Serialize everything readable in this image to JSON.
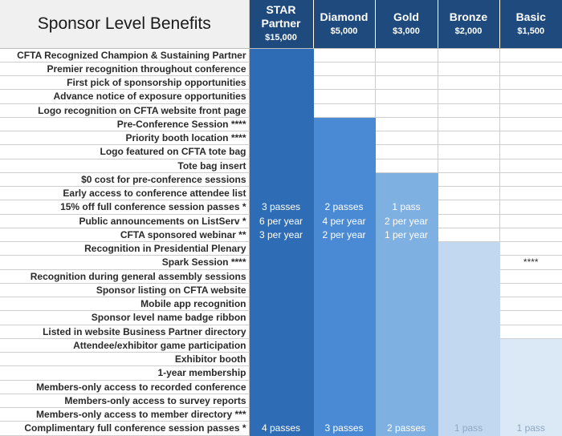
{
  "title": "Sponsor Level Benefits",
  "levels": [
    {
      "name": "STAR Partner",
      "price": "$15,000",
      "color": "#2e6db5"
    },
    {
      "name": "Diamond",
      "price": "$5,000",
      "color": "#4a8ad4"
    },
    {
      "name": "Gold",
      "price": "$3,000",
      "color": "#7eb0e2"
    },
    {
      "name": "Bronze",
      "price": "$2,000",
      "color": "#c2d8f0"
    },
    {
      "name": "Basic",
      "price": "$1,500",
      "color": "#dbe8f5"
    }
  ],
  "header_color": "#1e4a7d",
  "benefits": [
    {
      "label": "CFTA Recognized Champion & Sustaining Partner",
      "included_from": 0,
      "values": [
        "",
        "",
        "",
        "",
        ""
      ]
    },
    {
      "label": "Premier recognition throughout conference",
      "included_from": 0,
      "values": [
        "",
        "",
        "",
        "",
        ""
      ]
    },
    {
      "label": "First pick of sponsorship opportunities",
      "included_from": 0,
      "values": [
        "",
        "",
        "",
        "",
        ""
      ]
    },
    {
      "label": "Advance notice of exposure opportunities",
      "included_from": 0,
      "values": [
        "",
        "",
        "",
        "",
        ""
      ]
    },
    {
      "label": "Logo recognition on CFTA website front page",
      "included_from": 0,
      "values": [
        "",
        "",
        "",
        "",
        ""
      ]
    },
    {
      "label": "Pre-Conference Session ****",
      "included_from": 1,
      "values": [
        "",
        "",
        "",
        "",
        ""
      ]
    },
    {
      "label": "Priority booth location ****",
      "included_from": 1,
      "values": [
        "",
        "",
        "",
        "",
        ""
      ]
    },
    {
      "label": "Logo featured on CFTA tote bag",
      "included_from": 1,
      "values": [
        "",
        "",
        "",
        "",
        ""
      ]
    },
    {
      "label": "Tote bag insert",
      "included_from": 1,
      "values": [
        "",
        "",
        "",
        "",
        ""
      ]
    },
    {
      "label": "$0 cost for pre-conference sessions",
      "included_from": 2,
      "values": [
        "",
        "",
        "",
        "",
        ""
      ]
    },
    {
      "label": "Early access to conference attendee list",
      "included_from": 2,
      "values": [
        "",
        "",
        "",
        "",
        ""
      ]
    },
    {
      "label": "15% off full conference session passes *",
      "included_from": 2,
      "values": [
        "3 passes",
        "2 passes",
        "1 pass",
        "",
        ""
      ]
    },
    {
      "label": "Public announcements on ListServ *",
      "included_from": 2,
      "values": [
        "6 per year",
        "4 per year",
        "2 per year",
        "",
        ""
      ]
    },
    {
      "label": "CFTA sponsored webinar **",
      "included_from": 2,
      "values": [
        "3 per year",
        "2 per year",
        "1 per year",
        "",
        ""
      ]
    },
    {
      "label": "Recognition in Presidential Plenary",
      "included_from": 3,
      "values": [
        "",
        "",
        "",
        "",
        ""
      ]
    },
    {
      "label": "Spark Session ****",
      "included_from": 3,
      "values": [
        "",
        "",
        "",
        "",
        "****"
      ]
    },
    {
      "label": "Recognition during general assembly sessions",
      "included_from": 3,
      "values": [
        "",
        "",
        "",
        "",
        ""
      ]
    },
    {
      "label": "Sponsor listing on CFTA website",
      "included_from": 3,
      "values": [
        "",
        "",
        "",
        "",
        ""
      ]
    },
    {
      "label": "Mobile app recognition",
      "included_from": 3,
      "values": [
        "",
        "",
        "",
        "",
        ""
      ]
    },
    {
      "label": "Sponsor level name badge ribbon",
      "included_from": 3,
      "values": [
        "",
        "",
        "",
        "",
        ""
      ]
    },
    {
      "label": "Listed in website Business Partner directory",
      "included_from": 3,
      "values": [
        "",
        "",
        "",
        "",
        ""
      ]
    },
    {
      "label": "Attendee/exhibitor game participation",
      "included_from": 4,
      "values": [
        "",
        "",
        "",
        "",
        ""
      ]
    },
    {
      "label": "Exhibitor booth",
      "included_from": 4,
      "values": [
        "",
        "",
        "",
        "",
        ""
      ]
    },
    {
      "label": "1-year membership",
      "included_from": 4,
      "values": [
        "",
        "",
        "",
        "",
        ""
      ]
    },
    {
      "label": "Members-only access to recorded conference",
      "included_from": 4,
      "values": [
        "",
        "",
        "",
        "",
        ""
      ]
    },
    {
      "label": "Members-only access to survey reports",
      "included_from": 4,
      "values": [
        "",
        "",
        "",
        "",
        ""
      ]
    },
    {
      "label": "Members-only access to member directory ***",
      "included_from": 4,
      "values": [
        "",
        "",
        "",
        "",
        ""
      ]
    },
    {
      "label": "Complimentary full conference session passes *",
      "included_from": 4,
      "values": [
        "4 passes",
        "3 passes",
        "2 passes",
        "1 pass",
        "1 pass"
      ]
    }
  ]
}
